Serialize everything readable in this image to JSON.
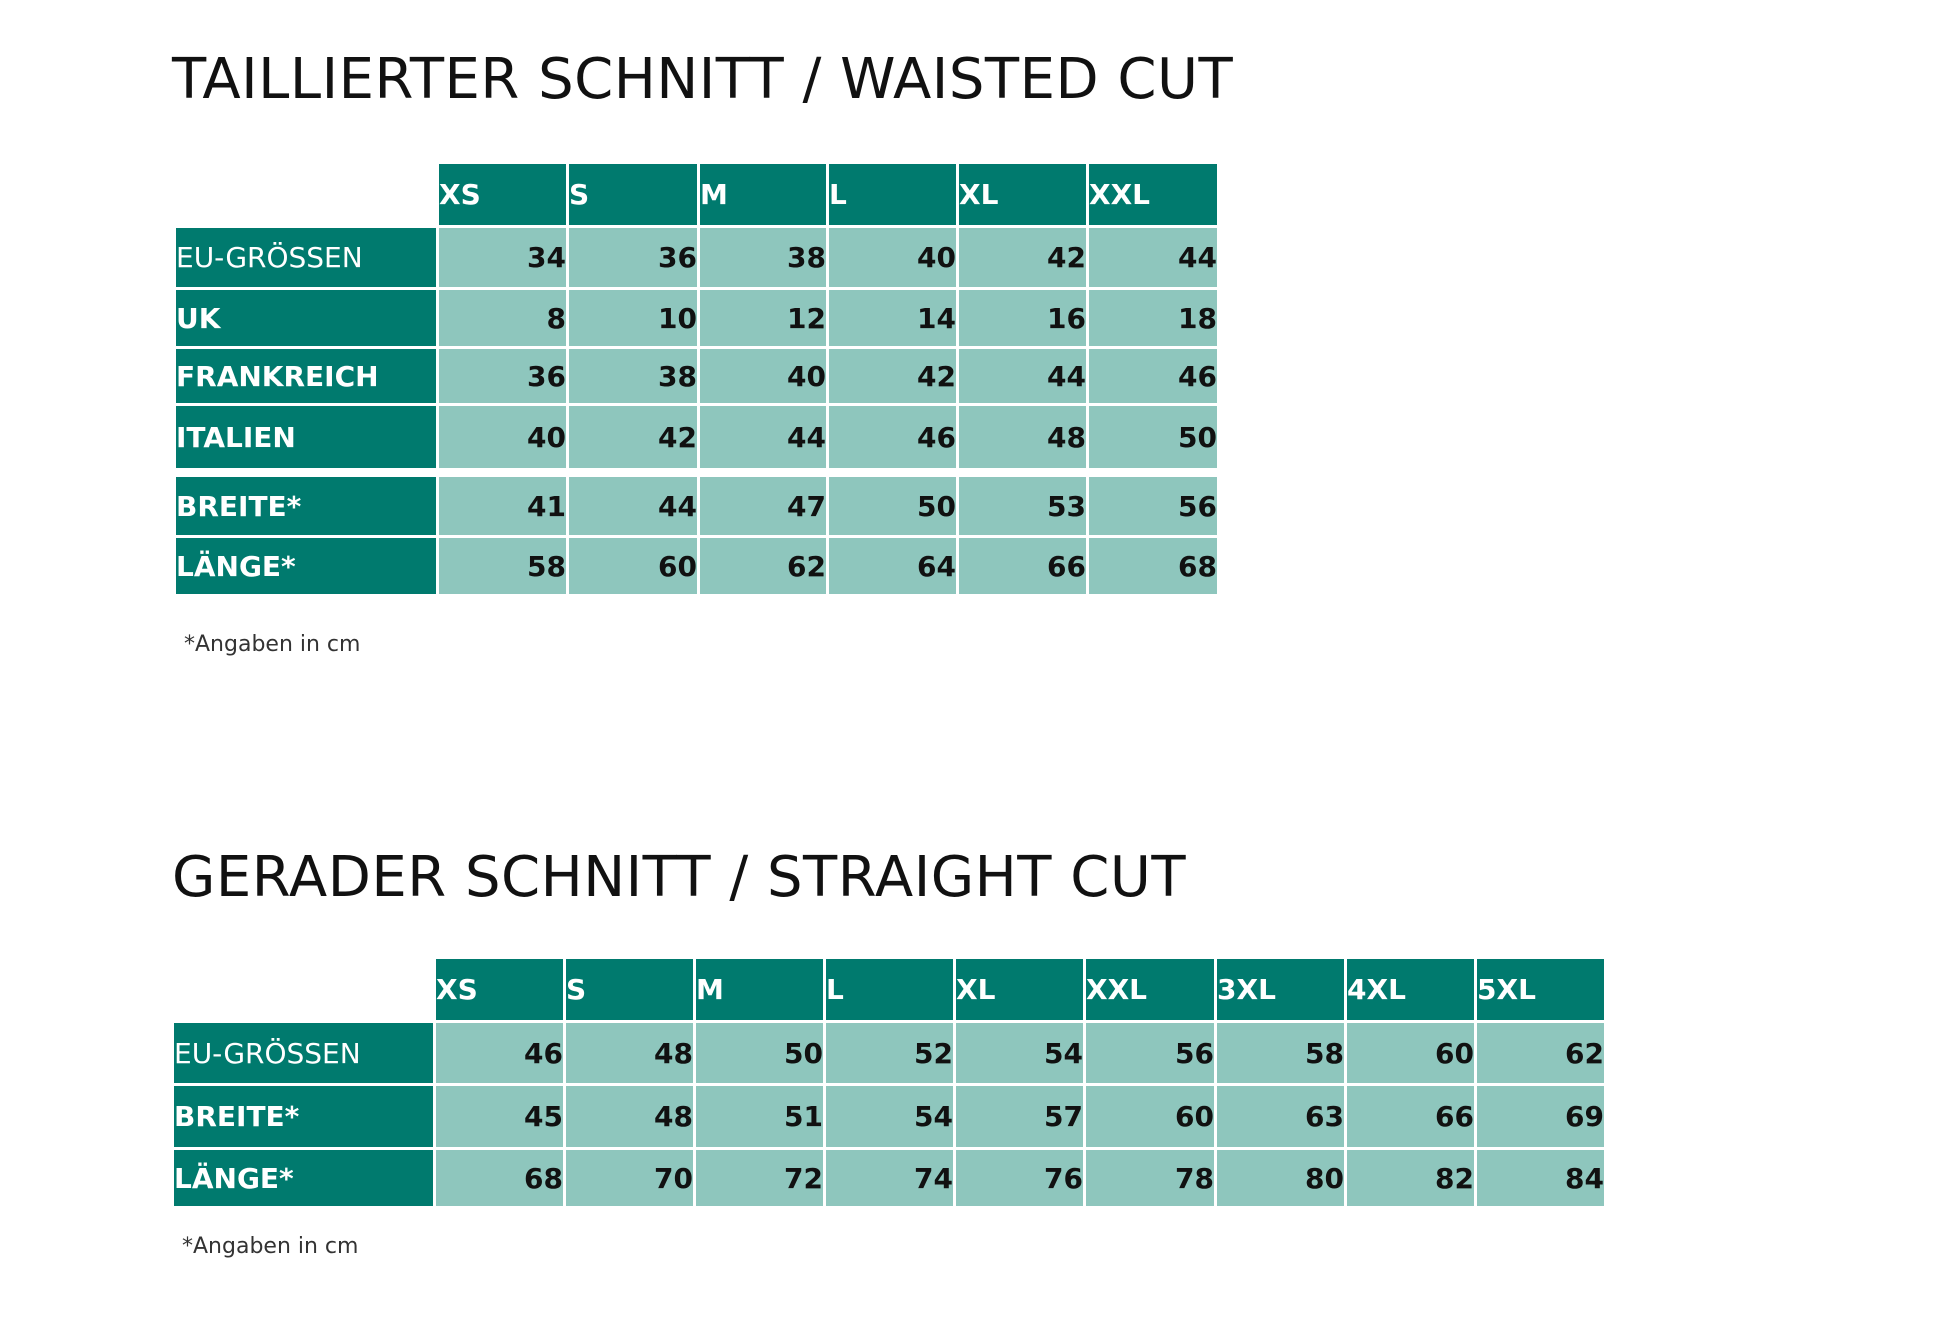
{
  "waisted": {
    "title": "TAILLIERTER SCHNITT / WAISTED CUT",
    "sizes": [
      "XS",
      "S",
      "M",
      "L",
      "XL",
      "XXL"
    ],
    "rows": [
      {
        "label": "EU-GRÖSSEN",
        "values": [
          "34",
          "36",
          "38",
          "40",
          "42",
          "44"
        ]
      },
      {
        "label": "UK",
        "values": [
          "8",
          "10",
          "12",
          "14",
          "16",
          "18"
        ]
      },
      {
        "label": "FRANKREICH",
        "values": [
          "36",
          "38",
          "40",
          "42",
          "44",
          "46"
        ]
      },
      {
        "label": "ITALIEN",
        "values": [
          "40",
          "42",
          "44",
          "46",
          "48",
          "50"
        ]
      },
      {
        "label": "BREITE*",
        "values": [
          "41",
          "44",
          "47",
          "50",
          "53",
          "56"
        ]
      },
      {
        "label": "LÄNGE*",
        "values": [
          "58",
          "60",
          "62",
          "64",
          "66",
          "68"
        ]
      }
    ],
    "footnote": "*Angaben in cm"
  },
  "straight": {
    "title": "GERADER SCHNITT / STRAIGHT CUT",
    "sizes": [
      "XS",
      "S",
      "M",
      "L",
      "XL",
      "XXL",
      "3XL",
      "4XL",
      "5XL"
    ],
    "rows": [
      {
        "label": "EU-GRÖSSEN",
        "values": [
          "46",
          "48",
          "50",
          "52",
          "54",
          "56",
          "58",
          "60",
          "62"
        ]
      },
      {
        "label": "BREITE*",
        "values": [
          "45",
          "48",
          "51",
          "54",
          "57",
          "60",
          "63",
          "66",
          "69"
        ]
      },
      {
        "label": "LÄNGE*",
        "values": [
          "68",
          "70",
          "72",
          "74",
          "76",
          "78",
          "80",
          "82",
          "84"
        ]
      }
    ],
    "footnote": "*Angaben in cm"
  },
  "colors": {
    "header_teal": "#007a6e",
    "cell_light_teal": "#8ec6bd",
    "text_dark": "#111111"
  }
}
